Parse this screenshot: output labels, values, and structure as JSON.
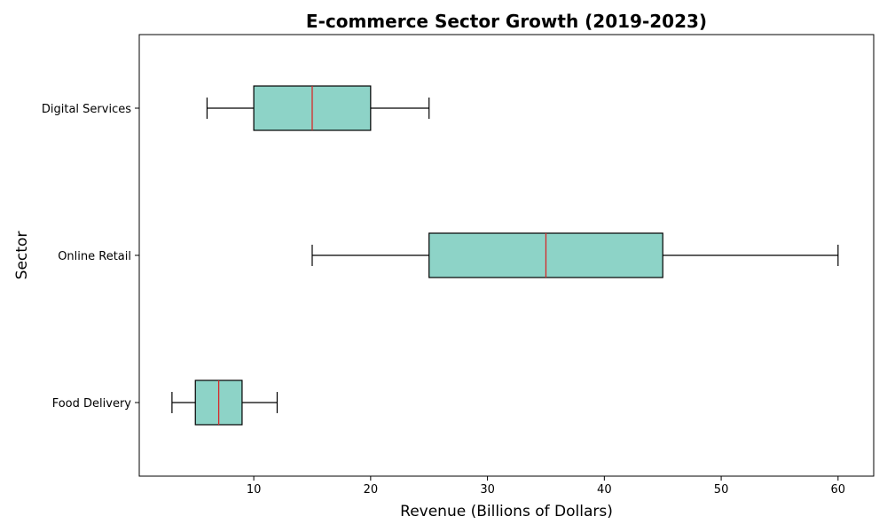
{
  "chart_data": {
    "type": "boxplot",
    "orientation": "horizontal",
    "title": "E-commerce Sector Growth (2019-2023)",
    "xlabel": "Revenue (Billions of Dollars)",
    "ylabel": "Sector",
    "xlim": [
      0.2,
      63.05
    ],
    "xticks": [
      10,
      20,
      30,
      40,
      50,
      60
    ],
    "categories": [
      "Food Delivery",
      "Online Retail",
      "Digital Services"
    ],
    "boxes": [
      {
        "label": "Food Delivery",
        "whisker_low": 3,
        "q1": 5,
        "median": 7,
        "q3": 9,
        "whisker_high": 12
      },
      {
        "label": "Online Retail",
        "whisker_low": 15,
        "q1": 25,
        "median": 35,
        "q3": 45,
        "whisker_high": 60
      },
      {
        "label": "Digital Services",
        "whisker_low": 6,
        "q1": 10,
        "median": 15,
        "q3": 20,
        "whisker_high": 25
      }
    ],
    "box_color": "#8dd3c7",
    "median_color": "#d62728",
    "edge_color": "#000000",
    "grid": false,
    "legend": "none"
  }
}
